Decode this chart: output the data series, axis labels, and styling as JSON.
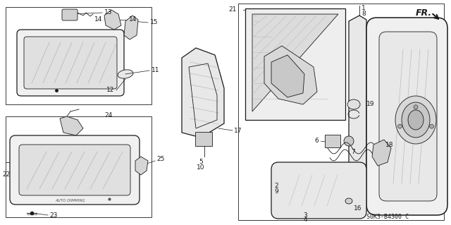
{
  "bg_color": "#ffffff",
  "line_color": "#1a1a1a",
  "part_number_text": "S0K3-B4300 C",
  "fr_label": "FR.",
  "font_size_labels": 6.5,
  "font_size_partnum": 6,
  "font_size_fr": 9,
  "figsize": [
    6.4,
    3.19
  ],
  "dpi": 100
}
